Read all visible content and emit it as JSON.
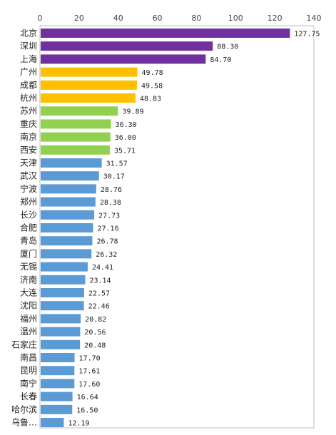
{
  "chart_data": {
    "type": "bar",
    "orientation": "horizontal",
    "title": "",
    "xlabel": "",
    "ylabel": "",
    "xlim": [
      0,
      140
    ],
    "xticks": [
      0,
      20,
      40,
      60,
      80,
      100,
      120,
      140
    ],
    "x_axis_position": "top",
    "grid": false,
    "legend": "none",
    "categories": [
      "北京",
      "深圳",
      "上海",
      "广州",
      "成都",
      "杭州",
      "苏州",
      "重庆",
      "南京",
      "西安",
      "天津",
      "武汉",
      "宁波",
      "郑州",
      "长沙",
      "合肥",
      "青岛",
      "厦门",
      "无锡",
      "济南",
      "大连",
      "沈阳",
      "福州",
      "温州",
      "石家庄",
      "南昌",
      "昆明",
      "南宁",
      "长春",
      "哈尔滨",
      "乌鲁…"
    ],
    "values": [
      127.75,
      88.3,
      84.7,
      49.78,
      49.58,
      48.83,
      39.89,
      36.3,
      36.0,
      35.71,
      31.57,
      30.17,
      28.76,
      28.38,
      27.73,
      27.16,
      26.78,
      26.32,
      24.41,
      23.14,
      22.57,
      22.46,
      20.82,
      20.56,
      20.48,
      17.7,
      17.61,
      17.6,
      16.64,
      16.5,
      12.19
    ],
    "value_labels": [
      "127.75",
      "88.30",
      "84.70",
      "49.78",
      "49.58",
      "48.83",
      "39.89",
      "36.30",
      "36.00",
      "35.71",
      "31.57",
      "30.17",
      "28.76",
      "28.38",
      "27.73",
      "27.16",
      "26.78",
      "26.32",
      "24.41",
      "23.14",
      "22.57",
      "22.46",
      "20.82",
      "20.56",
      "20.48",
      "17.70",
      "17.61",
      "17.60",
      "16.64",
      "16.50",
      "12.19"
    ],
    "bar_colors": [
      "#7030a0",
      "#7030a0",
      "#7030a0",
      "#ffc000",
      "#ffc000",
      "#ffc000",
      "#92d050",
      "#92d050",
      "#92d050",
      "#92d050",
      "#5b9bd5",
      "#5b9bd5",
      "#5b9bd5",
      "#5b9bd5",
      "#5b9bd5",
      "#5b9bd5",
      "#5b9bd5",
      "#5b9bd5",
      "#5b9bd5",
      "#5b9bd5",
      "#5b9bd5",
      "#5b9bd5",
      "#5b9bd5",
      "#5b9bd5",
      "#5b9bd5",
      "#5b9bd5",
      "#5b9bd5",
      "#5b9bd5",
      "#5b9bd5",
      "#5b9bd5",
      "#5b9bd5"
    ]
  }
}
